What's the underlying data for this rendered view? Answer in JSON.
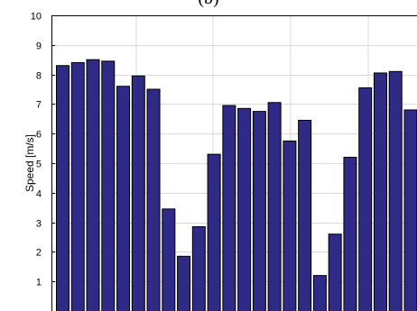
{
  "figure": {
    "panel_label": "(b)"
  },
  "chart_data": {
    "type": "bar",
    "title": "",
    "xlabel": "",
    "ylabel": "Speed [m/s]",
    "ylim": [
      0,
      10
    ],
    "yticks": [
      1,
      2,
      3,
      4,
      5,
      6,
      7,
      8,
      9,
      10
    ],
    "grid": true,
    "legend": "none",
    "bar_color": "#2e2a86",
    "bar_edge_color": "#000000",
    "grid_color": "#d9d9d9",
    "values": [
      8.3,
      8.4,
      8.5,
      8.45,
      7.6,
      7.95,
      7.5,
      3.45,
      1.85,
      2.85,
      5.3,
      6.95,
      6.85,
      6.75,
      7.05,
      5.75,
      6.45,
      1.2,
      2.6,
      5.2,
      7.55,
      8.05,
      8.1,
      6.8
    ]
  }
}
